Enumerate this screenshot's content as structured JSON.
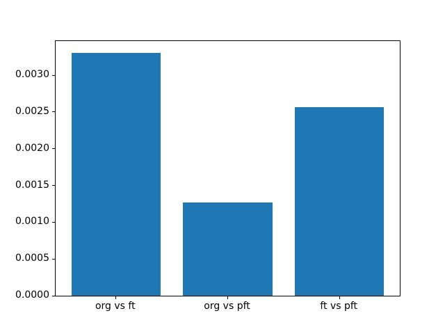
{
  "figure": {
    "background": "#ffffff",
    "axis_color": "#000000",
    "tick_label_color": "#000000"
  },
  "chart_data": {
    "type": "bar",
    "title": "",
    "xlabel": "",
    "ylabel": "",
    "categories": [
      "org vs ft",
      "org vs pft",
      "ft vs pft"
    ],
    "values": [
      0.0033,
      0.00127,
      0.00257
    ],
    "bar_color": "#1f77b4",
    "bar_width": 0.8,
    "xlim": [
      -0.54,
      2.54
    ],
    "ylim": [
      0,
      0.003465
    ],
    "yticks": [
      {
        "value": 0.0,
        "label": "0.0000"
      },
      {
        "value": 0.0005,
        "label": "0.0005"
      },
      {
        "value": 0.001,
        "label": "0.0010"
      },
      {
        "value": 0.0015,
        "label": "0.0015"
      },
      {
        "value": 0.002,
        "label": "0.0020"
      },
      {
        "value": 0.0025,
        "label": "0.0025"
      },
      {
        "value": 0.003,
        "label": "0.0030"
      }
    ],
    "grid": false,
    "legend": null
  }
}
